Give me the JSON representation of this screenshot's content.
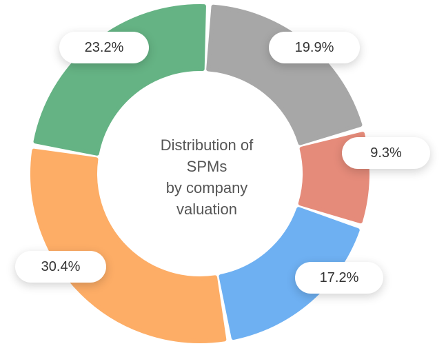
{
  "chart_data": {
    "type": "pie",
    "variant": "donut",
    "title_lines": [
      "Distribution of",
      "SPMs",
      "by company",
      "valuation"
    ],
    "slices": [
      {
        "label": "19.9%",
        "value": 19.9,
        "color": "#a7a7a7"
      },
      {
        "label": "9.3%",
        "value": 9.3,
        "color": "#e58b7a"
      },
      {
        "label": "17.2%",
        "value": 17.2,
        "color": "#6eb0f2"
      },
      {
        "label": "30.4%",
        "value": 30.4,
        "color": "#fdad66"
      },
      {
        "label": "23.2%",
        "value": 23.2,
        "color": "#65b384"
      }
    ]
  }
}
